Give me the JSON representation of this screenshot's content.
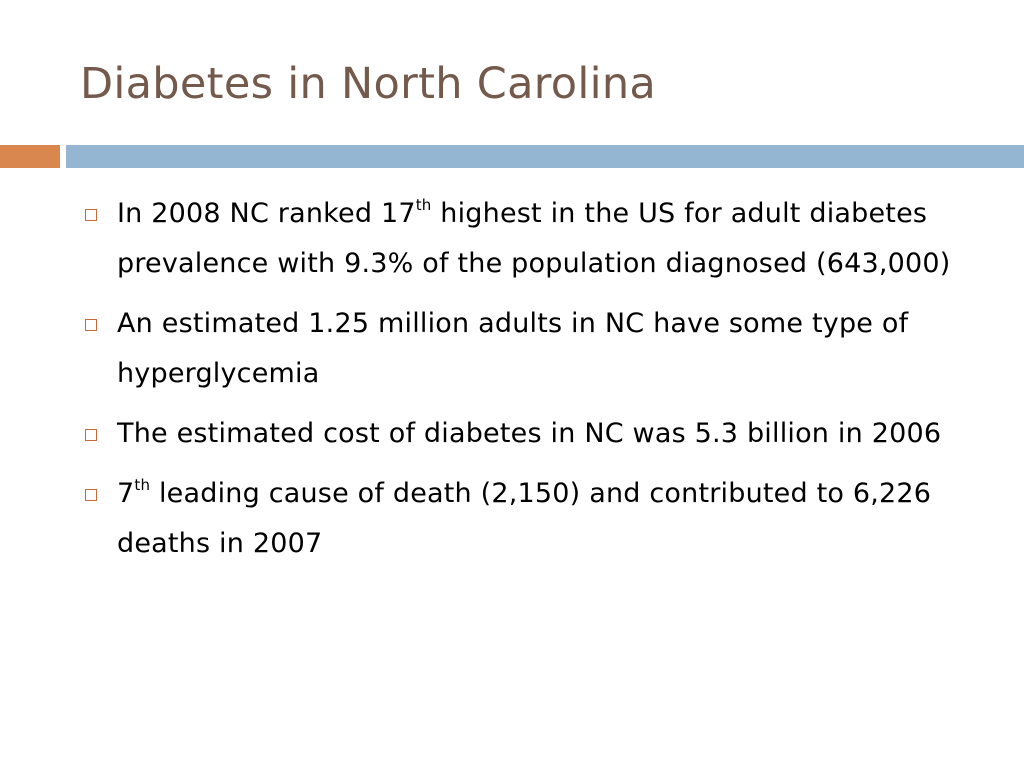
{
  "slide": {
    "title": "Diabetes in North Carolina"
  },
  "colors": {
    "title": "#735a4c",
    "accent_bar": "#d9874f",
    "main_bar": "#94b6d2",
    "bullet_marker": "#c86a3c"
  },
  "bullets": [
    {
      "pre": "In 2008 NC ranked 17",
      "sup": "th",
      "post": " highest in the US for adult diabetes prevalence with 9.3% of the population diagnosed (643,000)"
    },
    {
      "pre": "An estimated 1.25 million adults in NC have some type of hyperglycemia",
      "sup": "",
      "post": ""
    },
    {
      "pre": "The estimated cost of diabetes in NC was 5.3 billion in 2006",
      "sup": "",
      "post": ""
    },
    {
      "pre": "7",
      "sup": "th",
      "post": " leading cause of death (2,150) and contributed to 6,226 deaths in 2007"
    }
  ]
}
